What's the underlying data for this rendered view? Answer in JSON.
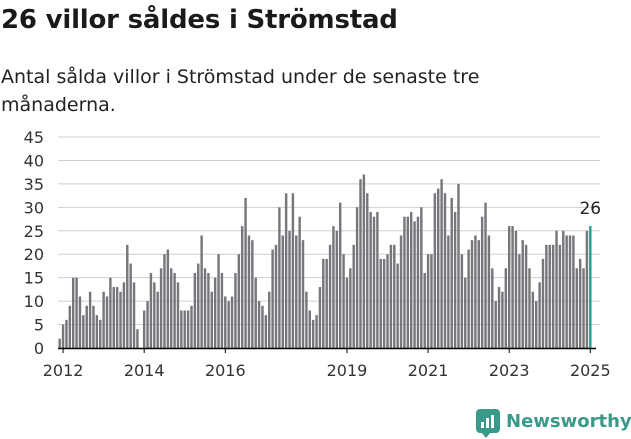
{
  "title": "26 villor såldes i Strömstad",
  "subtitle": "Antal sålda villor i Strömstad under de senaste tre månaderna.",
  "brand": {
    "name": "Newsworthy",
    "icon": "bar-chart-logo-icon"
  },
  "colors": {
    "bar": "#77767b",
    "highlight": "#2a9d8f",
    "grid": "#cfcfcf",
    "axis": "#000000",
    "text": "#333333"
  },
  "chart_data": {
    "type": "bar",
    "x_unit": "month",
    "start": "2011-12",
    "end": "2025-04",
    "xticks": [
      "2012",
      "2014",
      "2016",
      "2019",
      "2021",
      "2023",
      "2025"
    ],
    "ylim": [
      0,
      45
    ],
    "yticks": [
      0,
      5,
      10,
      15,
      20,
      25,
      30,
      35,
      40,
      45
    ],
    "grid": true,
    "values": [
      2,
      5,
      6,
      9,
      15,
      15,
      11,
      7,
      9,
      12,
      9,
      7,
      6,
      12,
      11,
      15,
      13,
      13,
      12,
      14,
      22,
      18,
      14,
      4,
      0,
      8,
      10,
      16,
      14,
      12,
      17,
      20,
      21,
      17,
      16,
      14,
      8,
      8,
      8,
      9,
      16,
      18,
      24,
      17,
      16,
      12,
      15,
      20,
      16,
      11,
      10,
      11,
      16,
      20,
      26,
      32,
      24,
      23,
      15,
      10,
      9,
      7,
      12,
      21,
      22,
      30,
      24,
      33,
      25,
      33,
      24,
      28,
      23,
      12,
      8,
      6,
      7,
      13,
      19,
      19,
      22,
      26,
      25,
      31,
      20,
      15,
      17,
      22,
      30,
      36,
      37,
      33,
      29,
      28,
      29,
      19,
      19,
      20,
      22,
      22,
      18,
      24,
      28,
      28,
      29,
      27,
      28,
      30,
      16,
      20,
      20,
      33,
      34,
      36,
      33,
      24,
      32,
      29,
      35,
      20,
      15,
      21,
      23,
      24,
      23,
      28,
      31,
      24,
      17,
      10,
      13,
      12,
      17,
      26,
      26,
      25,
      20,
      23,
      22,
      17,
      12,
      10,
      14,
      19,
      22,
      22,
      22,
      25,
      22,
      25,
      24,
      24,
      24,
      17,
      19,
      17,
      25,
      26
    ],
    "highlight_last": true,
    "annotation": {
      "label": "26",
      "value": 26
    }
  }
}
